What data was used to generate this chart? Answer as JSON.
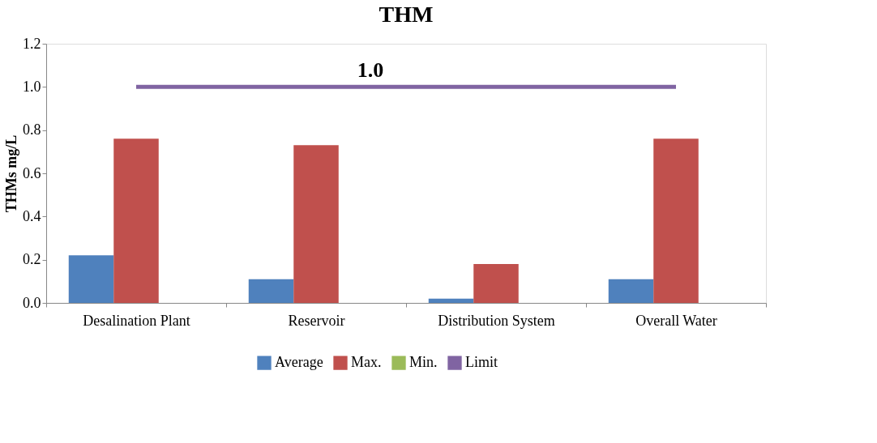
{
  "chart_data": {
    "type": "bar",
    "title": "THM",
    "ylabel": "THMs mg/L",
    "categories": [
      "Desalination Plant",
      "Reservoir",
      "Distribution System",
      "Overall Water"
    ],
    "series": [
      {
        "name": "Average",
        "color": "#4f81bd",
        "values": [
          0.22,
          0.11,
          0.02,
          0.11
        ]
      },
      {
        "name": "Max.",
        "color": "#c0504d",
        "values": [
          0.76,
          0.73,
          0.18,
          0.76
        ]
      },
      {
        "name": "Min.",
        "color": "#9bbb59",
        "values": [
          0,
          0,
          0,
          0
        ]
      },
      {
        "name": "Limit",
        "color": "#8064a2",
        "type": "line",
        "values": [
          1.0,
          1.0,
          1.0,
          1.0
        ]
      }
    ],
    "annotations": [
      {
        "text": "1.0",
        "y": 1.0
      }
    ],
    "ylim": [
      0,
      1.2
    ],
    "yticks": [
      {
        "value": 0,
        "label": "0.0"
      },
      {
        "value": 0.2,
        "label": "0.2"
      },
      {
        "value": 0.4,
        "label": "0.4"
      },
      {
        "value": 0.6,
        "label": "0.6"
      },
      {
        "value": 0.8,
        "label": "0.8"
      },
      {
        "value": 1.0,
        "label": "1.0"
      },
      {
        "value": 1.2,
        "label": "1.2"
      }
    ],
    "grid": false,
    "legend": "bottom"
  }
}
